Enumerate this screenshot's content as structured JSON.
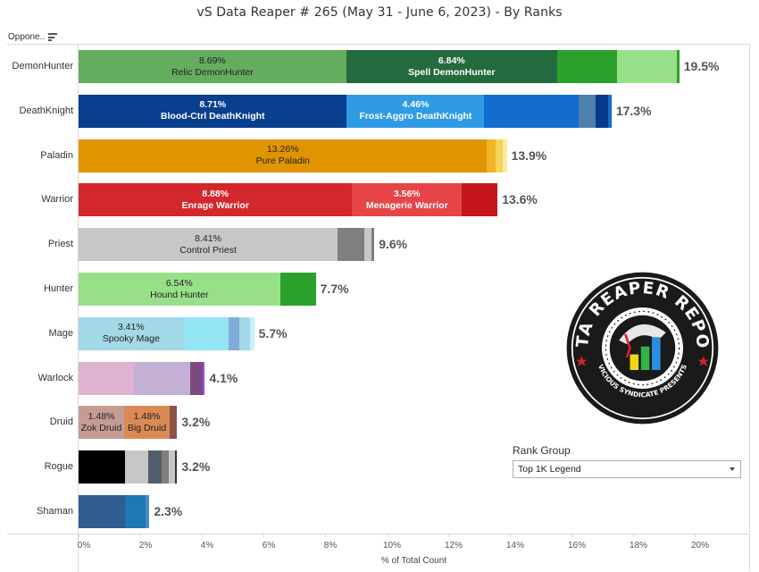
{
  "title": "vS Data Reaper #  265 (May 31 - June 6, 2023) - By Ranks",
  "row_header": {
    "label": "Oppone..",
    "icon": "sort-icon"
  },
  "filter": {
    "title": "Rank Group",
    "selected": "Top 1K Legend",
    "icon": "chevron-down-icon"
  },
  "logo": {
    "text_top": "DATA REAPER REPORT",
    "text_bottom": "VICIOUS SYNDICATE PRESENTS",
    "colors": {
      "ring": "#1a1a1a",
      "star": "#d0242b",
      "bar_yellow": "#f5d217",
      "bar_green": "#2fb34a",
      "bar_blue": "#2a8ee0"
    }
  },
  "axis": {
    "ticks": [
      "0%",
      "2%",
      "4%",
      "6%",
      "8%",
      "10%",
      "12%",
      "14%",
      "16%",
      "18%",
      "20%"
    ],
    "xlabel": "% of Total Count"
  },
  "chart_data": {
    "type": "bar",
    "orientation": "horizontal",
    "stacked": true,
    "title": "vS Data Reaper #  265 (May 31 - June 6, 2023) - By Ranks",
    "xlabel": "% of Total Count",
    "ylabel": "Opponent Class",
    "xlim": [
      0,
      21.7
    ],
    "grid": false,
    "categories": [
      "DemonHunter",
      "DeathKnight",
      "Paladin",
      "Warrior",
      "Priest",
      "Hunter",
      "Mage",
      "Warlock",
      "Druid",
      "Rogue",
      "Shaman"
    ],
    "totals": [
      "19.5%",
      "17.3%",
      "13.9%",
      "13.6%",
      "9.6%",
      "7.7%",
      "5.7%",
      "4.1%",
      "3.2%",
      "3.2%",
      "2.3%"
    ],
    "rows": [
      {
        "class": "DemonHunter",
        "total": "19.5%",
        "segments": [
          {
            "value": 8.69,
            "label": "8.69%",
            "name": "Relic DemonHunter",
            "color": "#64ad5e",
            "text": "#222"
          },
          {
            "value": 6.84,
            "label": "6.84%",
            "name": "Spell DemonHunter",
            "color": "#236b3e",
            "text": "#fff"
          },
          {
            "value": 1.95,
            "label": "",
            "name": "",
            "color": "#2ca02c",
            "text": "#fff"
          },
          {
            "value": 1.93,
            "label": "",
            "name": "",
            "color": "#98df8a",
            "text": "#222"
          },
          {
            "value": 0.09,
            "label": "",
            "name": "",
            "color": "#2ca02c",
            "text": "#fff"
          }
        ]
      },
      {
        "class": "DeathKnight",
        "total": "17.3%",
        "segments": [
          {
            "value": 8.71,
            "label": "8.71%",
            "name": "Blood-Ctrl DeathKnight",
            "color": "#083f8f",
            "text": "#fff"
          },
          {
            "value": 4.46,
            "label": "4.46%",
            "name": "Frost-Aggro DeathKnight",
            "color": "#2f9be5",
            "text": "#fff"
          },
          {
            "value": 3.07,
            "label": "",
            "name": "",
            "color": "#126dcc",
            "text": "#fff"
          },
          {
            "value": 0.55,
            "label": "",
            "name": "",
            "color": "#4e7fad",
            "text": "#fff"
          },
          {
            "value": 0.4,
            "label": "",
            "name": "",
            "color": "#08398d",
            "text": "#fff"
          },
          {
            "value": 0.11,
            "label": "",
            "name": "",
            "color": "#126dcc",
            "text": "#fff"
          }
        ]
      },
      {
        "class": "Paladin",
        "total": "13.9%",
        "segments": [
          {
            "value": 13.26,
            "label": "13.26%",
            "name": "Pure Paladin",
            "color": "#e09400",
            "text": "#222"
          },
          {
            "value": 0.28,
            "label": "",
            "name": "",
            "color": "#f0b429",
            "text": "#222"
          },
          {
            "value": 0.22,
            "label": "",
            "name": "",
            "color": "#f6d35b",
            "text": "#222"
          },
          {
            "value": 0.14,
            "label": "",
            "name": "",
            "color": "#fbeb9c",
            "text": "#222"
          }
        ]
      },
      {
        "class": "Warrior",
        "total": "13.6%",
        "segments": [
          {
            "value": 8.88,
            "label": "8.88%",
            "name": "Enrage Warrior",
            "color": "#d4272c",
            "text": "#fff"
          },
          {
            "value": 3.56,
            "label": "3.56%",
            "name": "Menagerie Warrior",
            "color": "#e64447",
            "text": "#fff"
          },
          {
            "value": 1.16,
            "label": "",
            "name": "",
            "color": "#c4161c",
            "text": "#fff"
          }
        ]
      },
      {
        "class": "Priest",
        "total": "9.6%",
        "segments": [
          {
            "value": 8.41,
            "label": "8.41%",
            "name": "Control Priest",
            "color": "#c7c7c7",
            "text": "#222"
          },
          {
            "value": 0.87,
            "label": "",
            "name": "",
            "color": "#7f7f7f",
            "text": "#fff"
          },
          {
            "value": 0.23,
            "label": "",
            "name": "",
            "color": "#c7c7c7",
            "text": "#222"
          },
          {
            "value": 0.09,
            "label": "",
            "name": "",
            "color": "#7f7f7f",
            "text": "#fff"
          }
        ]
      },
      {
        "class": "Hunter",
        "total": "7.7%",
        "segments": [
          {
            "value": 6.54,
            "label": "6.54%",
            "name": "Hound Hunter",
            "color": "#98df8a",
            "text": "#222"
          },
          {
            "value": 1.16,
            "label": "",
            "name": "",
            "color": "#2ca02c",
            "text": "#fff"
          }
        ]
      },
      {
        "class": "Mage",
        "total": "5.7%",
        "segments": [
          {
            "value": 3.41,
            "label": "3.41%",
            "name": "Spooky Mage",
            "color": "#a3d9e6",
            "text": "#222"
          },
          {
            "value": 1.47,
            "label": "",
            "name": "",
            "color": "#93e4f4",
            "text": "#222"
          },
          {
            "value": 0.35,
            "label": "",
            "name": "",
            "color": "#82acd8",
            "text": "#222"
          },
          {
            "value": 0.35,
            "label": "",
            "name": "",
            "color": "#a3d9e6",
            "text": "#222"
          },
          {
            "value": 0.12,
            "label": "",
            "name": "",
            "color": "#c8f2fb",
            "text": "#222"
          }
        ]
      },
      {
        "class": "Warlock",
        "total": "4.1%",
        "segments": [
          {
            "value": 1.81,
            "label": "",
            "name": "",
            "color": "#e0b2d2",
            "text": "#222"
          },
          {
            "value": 1.8,
            "label": "",
            "name": "",
            "color": "#c5b0d5",
            "text": "#222"
          },
          {
            "value": 0.42,
            "label": "",
            "name": "",
            "color": "#7b4a80",
            "text": "#fff"
          },
          {
            "value": 0.07,
            "label": "",
            "name": "",
            "color": "#9b4ee0",
            "text": "#fff"
          }
        ]
      },
      {
        "class": "Druid",
        "total": "3.2%",
        "segments": [
          {
            "value": 1.48,
            "label": "1.48%",
            "name": "Zok Druid",
            "color": "#c49c94",
            "text": "#222"
          },
          {
            "value": 1.48,
            "label": "1.48%",
            "name": "Big Druid",
            "color": "#d98a55",
            "text": "#222"
          },
          {
            "value": 0.24,
            "label": "",
            "name": "",
            "color": "#8c5348",
            "text": "#fff"
          }
        ]
      },
      {
        "class": "Rogue",
        "total": "3.2%",
        "segments": [
          {
            "value": 1.51,
            "label": "",
            "name": "",
            "color": "#000000",
            "text": "#fff"
          },
          {
            "value": 0.75,
            "label": "",
            "name": "",
            "color": "#c7c7c7",
            "text": "#222"
          },
          {
            "value": 0.44,
            "label": "",
            "name": "",
            "color": "#525e6b",
            "text": "#fff"
          },
          {
            "value": 0.23,
            "label": "",
            "name": "",
            "color": "#7f7f7f",
            "text": "#fff"
          },
          {
            "value": 0.2,
            "label": "",
            "name": "",
            "color": "#c7c7c7",
            "text": "#222"
          },
          {
            "value": 0.07,
            "label": "",
            "name": "",
            "color": "#333333",
            "text": "#fff"
          }
        ]
      },
      {
        "class": "Shaman",
        "total": "2.3%",
        "segments": [
          {
            "value": 1.51,
            "label": "",
            "name": "",
            "color": "#305f8f",
            "text": "#fff"
          },
          {
            "value": 0.67,
            "label": "",
            "name": "",
            "color": "#1f77b4",
            "text": "#fff"
          },
          {
            "value": 0.12,
            "label": "",
            "name": "",
            "color": "#4a8cc6",
            "text": "#fff"
          }
        ]
      }
    ]
  }
}
